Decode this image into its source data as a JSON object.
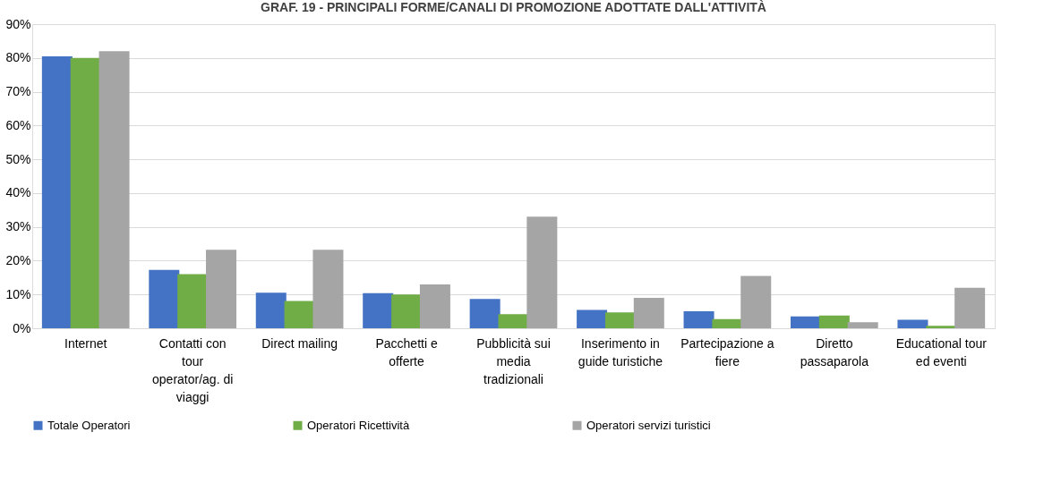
{
  "chart_data": {
    "type": "bar",
    "title": "GRAF. 19 - PRINCIPALI FORME/CANALI DI PROMOZIONE ADOTTATE DALL'ATTIVITÀ",
    "categories": [
      "Internet",
      "Contatti con tour operator/ag. di viaggi",
      "Direct mailing",
      "Pacchetti e offerte",
      "Pubblicità sui media tradizionali",
      "Inserimento in guide turistiche",
      "Partecipazione a fiere",
      "Diretto passaparola",
      "Educational tour ed eventi"
    ],
    "series": [
      {
        "name": "Totale Operatori",
        "color": "#4472c4",
        "values": [
          80.5,
          17.3,
          10.5,
          10.4,
          8.7,
          5.4,
          5.0,
          3.5,
          2.5
        ]
      },
      {
        "name": "Operatori Ricettività",
        "color": "#70ad47",
        "values": [
          80,
          16,
          8.1,
          10,
          4.2,
          4.7,
          2.7,
          3.8,
          0.7
        ]
      },
      {
        "name": "Operatori servizi turistici",
        "color": "#a5a5a5",
        "values": [
          82,
          23.2,
          23.2,
          13,
          33,
          9,
          15.5,
          1.8,
          12
        ]
      }
    ],
    "ylim": [
      0,
      90
    ],
    "yticks": [
      {
        "value": 0,
        "label": "0%"
      },
      {
        "value": 10,
        "label": "10%"
      },
      {
        "value": 20,
        "label": "20%"
      },
      {
        "value": 30,
        "label": "30%"
      },
      {
        "value": 40,
        "label": "40%"
      },
      {
        "value": 50,
        "label": "50%"
      },
      {
        "value": 60,
        "label": "60%"
      },
      {
        "value": 70,
        "label": "70%"
      },
      {
        "value": 80,
        "label": "80%"
      },
      {
        "value": 90,
        "label": "90%"
      }
    ],
    "grid": "y",
    "legend": "bottom"
  }
}
